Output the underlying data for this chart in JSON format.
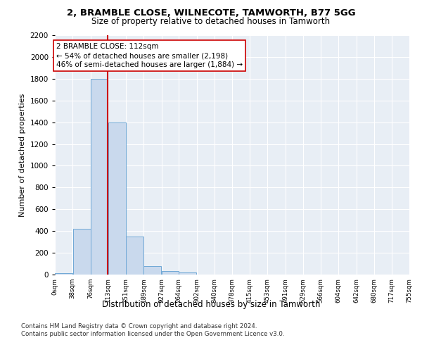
{
  "title_line1": "2, BRAMBLE CLOSE, WILNECOTE, TAMWORTH, B77 5GG",
  "title_line2": "Size of property relative to detached houses in Tamworth",
  "xlabel": "Distribution of detached houses by size in Tamworth",
  "ylabel": "Number of detached properties",
  "bar_color": "#c9d9ed",
  "bar_edge_color": "#6fa8d6",
  "background_color": "#e8eef5",
  "grid_color": "#ffffff",
  "annotation_text": "2 BRAMBLE CLOSE: 112sqm\n← 54% of detached houses are smaller (2,198)\n46% of semi-detached houses are larger (1,884) →",
  "vline_x": 112,
  "vline_color": "#cc0000",
  "property_size": 112,
  "bin_edges": [
    0,
    38,
    76,
    113,
    151,
    189,
    227,
    264,
    302,
    340,
    378,
    415,
    453,
    491,
    529,
    566,
    604,
    642,
    680,
    717,
    755
  ],
  "bin_counts": [
    15,
    420,
    1800,
    1400,
    350,
    80,
    30,
    20,
    0,
    0,
    0,
    0,
    0,
    0,
    0,
    0,
    0,
    0,
    0,
    0
  ],
  "ylim": [
    0,
    2200
  ],
  "xlim": [
    0,
    755
  ],
  "footnote_line1": "Contains HM Land Registry data © Crown copyright and database right 2024.",
  "footnote_line2": "Contains public sector information licensed under the Open Government Licence v3.0."
}
